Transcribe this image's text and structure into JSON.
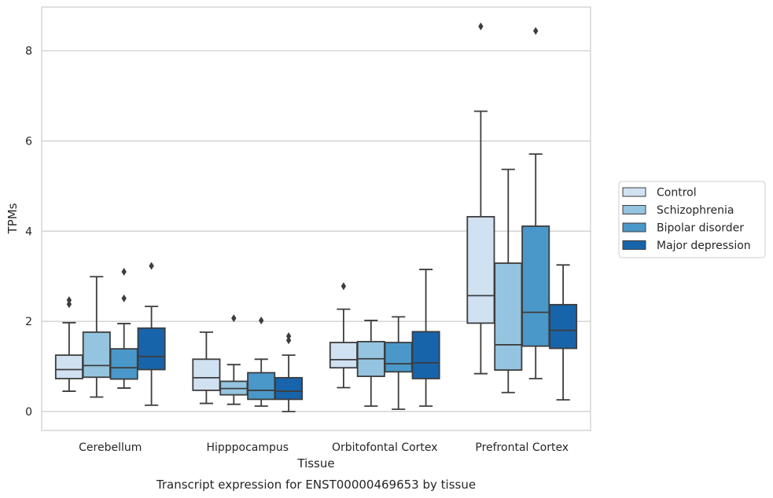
{
  "caption": "Transcript expression for ENST00000469653 by tissue",
  "chart_data": {
    "type": "box",
    "xlabel": "Tissue",
    "ylabel": "TPMs",
    "ylim": [
      -0.42,
      8.97
    ],
    "yticks": [
      0,
      2,
      4,
      6,
      8
    ],
    "grid": "horizontal",
    "legend_position": "right",
    "categories": [
      "Cerebellum",
      "Hipppocampus",
      "Orbitofontal Cortex",
      "Prefrontal Cortex"
    ],
    "series": [
      {
        "name": "Control",
        "color": "#d0e1f2",
        "boxes": [
          {
            "whislo": 0.45,
            "q1": 0.73,
            "med": 0.93,
            "q3": 1.25,
            "whishi": 1.97,
            "fliers": [
              2.38,
              2.47
            ]
          },
          {
            "whislo": 0.18,
            "q1": 0.47,
            "med": 0.75,
            "q3": 1.16,
            "whishi": 1.76,
            "fliers": []
          },
          {
            "whislo": 0.53,
            "q1": 0.97,
            "med": 1.15,
            "q3": 1.53,
            "whishi": 2.27,
            "fliers": [
              2.78
            ]
          },
          {
            "whislo": 0.84,
            "q1": 1.96,
            "med": 2.57,
            "q3": 4.32,
            "whishi": 6.66,
            "fliers": [
              8.54
            ]
          }
        ]
      },
      {
        "name": "Schizophrenia",
        "color": "#94c4df",
        "boxes": [
          {
            "whislo": 0.32,
            "q1": 0.76,
            "med": 1.02,
            "q3": 1.76,
            "whishi": 2.99,
            "fliers": []
          },
          {
            "whislo": 0.16,
            "q1": 0.37,
            "med": 0.51,
            "q3": 0.67,
            "whishi": 1.04,
            "fliers": [
              2.07
            ]
          },
          {
            "whislo": 0.12,
            "q1": 0.78,
            "med": 1.17,
            "q3": 1.55,
            "whishi": 2.02,
            "fliers": []
          },
          {
            "whislo": 0.42,
            "q1": 0.92,
            "med": 1.48,
            "q3": 3.29,
            "whishi": 5.37,
            "fliers": []
          }
        ]
      },
      {
        "name": "Bipolar disorder",
        "color": "#4a98c9",
        "boxes": [
          {
            "whislo": 0.52,
            "q1": 0.72,
            "med": 0.97,
            "q3": 1.39,
            "whishi": 1.95,
            "fliers": [
              2.51,
              3.1
            ]
          },
          {
            "whislo": 0.12,
            "q1": 0.27,
            "med": 0.47,
            "q3": 0.86,
            "whishi": 1.16,
            "fliers": [
              2.02
            ]
          },
          {
            "whislo": 0.05,
            "q1": 0.88,
            "med": 1.06,
            "q3": 1.53,
            "whishi": 2.1,
            "fliers": []
          },
          {
            "whislo": 0.73,
            "q1": 1.45,
            "med": 2.2,
            "q3": 4.11,
            "whishi": 5.71,
            "fliers": [
              8.44
            ]
          }
        ]
      },
      {
        "name": "Major depression",
        "color": "#1764ab",
        "boxes": [
          {
            "whislo": 0.14,
            "q1": 0.93,
            "med": 1.22,
            "q3": 1.85,
            "whishi": 2.33,
            "fliers": [
              3.23
            ]
          },
          {
            "whislo": 0.0,
            "q1": 0.27,
            "med": 0.45,
            "q3": 0.75,
            "whishi": 1.25,
            "fliers": [
              1.58,
              1.67
            ]
          },
          {
            "whislo": 0.12,
            "q1": 0.73,
            "med": 1.08,
            "q3": 1.77,
            "whishi": 3.15,
            "fliers": []
          },
          {
            "whislo": 0.26,
            "q1": 1.4,
            "med": 1.8,
            "q3": 2.37,
            "whishi": 3.25,
            "fliers": []
          }
        ]
      }
    ]
  }
}
